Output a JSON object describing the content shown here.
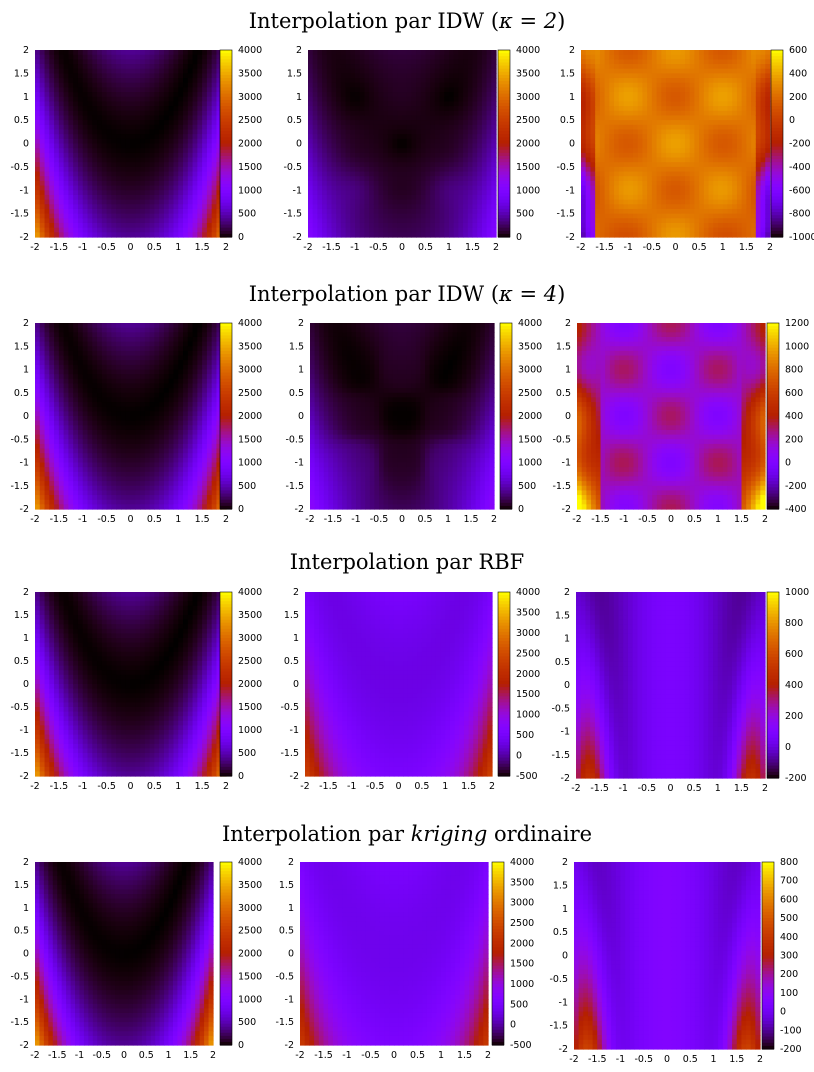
{
  "sections": [
    {
      "title_prefix": "Interpolation par IDW (",
      "title_math": "κ = 2",
      "title_suffix": ")"
    },
    {
      "title_prefix": "Interpolation par IDW (",
      "title_math": "κ = 4",
      "title_suffix": ")"
    },
    {
      "title_prefix": "Interpolation par RBF",
      "title_math": "",
      "title_suffix": ""
    },
    {
      "title_prefix": "Interpolation par ",
      "title_math": "kriging",
      "title_suffix": " ordinaire"
    }
  ],
  "chart_data": [
    {
      "type": "heatmap",
      "name": "idw2-exact",
      "x_ticks": [
        "-2",
        "-1.5",
        "-1",
        "-0.5",
        "0",
        "0.5",
        "1",
        "1.5",
        "2"
      ],
      "y_ticks": [
        "-2",
        "-1.5",
        "-1",
        "-0.5",
        "0",
        "0.5",
        "1",
        "1.5",
        "2"
      ],
      "xlim": [
        -2,
        2
      ],
      "ylim": [
        -2,
        2
      ],
      "cbar_range": [
        0,
        4000
      ],
      "cbar_ticks": [
        "0",
        "500",
        "1000",
        "1500",
        "2000",
        "2500",
        "3000",
        "3500",
        "4000"
      ],
      "field": "exact",
      "palette": "gnuplot"
    },
    {
      "type": "heatmap",
      "name": "idw2-interp",
      "x_ticks": [
        "-2",
        "-1.5",
        "-1",
        "-0.5",
        "0",
        "0.5",
        "1",
        "1.5",
        "2"
      ],
      "y_ticks": [
        "-2",
        "-1.5",
        "-1",
        "-0.5",
        "0",
        "0.5",
        "1",
        "1.5",
        "2"
      ],
      "xlim": [
        -2,
        2
      ],
      "ylim": [
        -2,
        2
      ],
      "cbar_range": [
        0,
        4000
      ],
      "cbar_ticks": [
        "0",
        "500",
        "1000",
        "1500",
        "2000",
        "2500",
        "3000",
        "3500",
        "4000"
      ],
      "field": "idw2",
      "palette": "gnuplot"
    },
    {
      "type": "heatmap",
      "name": "idw2-error",
      "x_ticks": [
        "-2",
        "-1.5",
        "-1",
        "-0.5",
        "0",
        "0.5",
        "1",
        "1.5",
        "2"
      ],
      "y_ticks": [
        "-2",
        "-1.5",
        "-1",
        "-0.5",
        "0",
        "0.5",
        "1",
        "1.5",
        "2"
      ],
      "xlim": [
        -2,
        2
      ],
      "ylim": [
        -2,
        2
      ],
      "cbar_range": [
        -1000,
        600
      ],
      "cbar_ticks": [
        "-1000",
        "-800",
        "-600",
        "-400",
        "-200",
        "0",
        "200",
        "400",
        "600"
      ],
      "field": "idw2err",
      "palette": "gnuplot"
    },
    {
      "type": "heatmap",
      "name": "idw4-exact",
      "x_ticks": [
        "-2",
        "-1.5",
        "-1",
        "-0.5",
        "0",
        "0.5",
        "1",
        "1.5",
        "2"
      ],
      "y_ticks": [
        "-2",
        "-1.5",
        "-1",
        "-0.5",
        "0",
        "0.5",
        "1",
        "1.5",
        "2"
      ],
      "xlim": [
        -2,
        2
      ],
      "ylim": [
        -2,
        2
      ],
      "cbar_range": [
        0,
        4000
      ],
      "cbar_ticks": [
        "0",
        "500",
        "1000",
        "1500",
        "2000",
        "2500",
        "3000",
        "3500",
        "4000"
      ],
      "field": "exact",
      "palette": "gnuplot"
    },
    {
      "type": "heatmap",
      "name": "idw4-interp",
      "x_ticks": [
        "-2",
        "-1.5",
        "-1",
        "-0.5",
        "0",
        "0.5",
        "1",
        "1.5",
        "2"
      ],
      "y_ticks": [
        "-2",
        "-1.5",
        "-1",
        "-0.5",
        "0",
        "0.5",
        "1",
        "1.5",
        "2"
      ],
      "xlim": [
        -2,
        2
      ],
      "ylim": [
        -2,
        2
      ],
      "cbar_range": [
        0,
        4000
      ],
      "cbar_ticks": [
        "0",
        "500",
        "1000",
        "1500",
        "2000",
        "2500",
        "3000",
        "3500",
        "4000"
      ],
      "field": "idw4",
      "palette": "gnuplot"
    },
    {
      "type": "heatmap",
      "name": "idw4-error",
      "x_ticks": [
        "-2",
        "-1.5",
        "-1",
        "-0.5",
        "0",
        "0.5",
        "1",
        "1.5",
        "2"
      ],
      "y_ticks": [
        "-2",
        "-1.5",
        "-1",
        "-0.5",
        "0",
        "0.5",
        "1",
        "1.5",
        "2"
      ],
      "xlim": [
        -2,
        2
      ],
      "ylim": [
        -2,
        2
      ],
      "cbar_range": [
        -400,
        1200
      ],
      "cbar_ticks": [
        "-400",
        "-200",
        "0",
        "200",
        "400",
        "600",
        "800",
        "1000",
        "1200"
      ],
      "field": "idw4err",
      "palette": "gnuplot"
    },
    {
      "type": "heatmap",
      "name": "rbf-exact",
      "x_ticks": [
        "-2",
        "-1.5",
        "-1",
        "-0.5",
        "0",
        "0.5",
        "1",
        "1.5",
        "2"
      ],
      "y_ticks": [
        "-2",
        "-1.5",
        "-1",
        "-0.5",
        "0",
        "0.5",
        "1",
        "1.5",
        "2"
      ],
      "xlim": [
        -2,
        2
      ],
      "ylim": [
        -2,
        2
      ],
      "cbar_range": [
        0,
        4000
      ],
      "cbar_ticks": [
        "0",
        "500",
        "1000",
        "1500",
        "2000",
        "2500",
        "3000",
        "3500",
        "4000"
      ],
      "field": "exact",
      "palette": "gnuplot"
    },
    {
      "type": "heatmap",
      "name": "rbf-interp",
      "x_ticks": [
        "-2",
        "-1.5",
        "-1",
        "-0.5",
        "0",
        "0.5",
        "1",
        "1.5",
        "2"
      ],
      "y_ticks": [
        "-2",
        "-1.5",
        "-1",
        "-0.5",
        "0",
        "0.5",
        "1",
        "1.5",
        "2"
      ],
      "xlim": [
        -2,
        2
      ],
      "ylim": [
        -2,
        2
      ],
      "cbar_range": [
        -500,
        4000
      ],
      "cbar_ticks": [
        "-500",
        "0",
        "500",
        "1000",
        "1500",
        "2000",
        "2500",
        "3000",
        "3500",
        "4000"
      ],
      "field": "rbf",
      "palette": "gnuplot"
    },
    {
      "type": "heatmap",
      "name": "rbf-error",
      "x_ticks": [
        "-2",
        "-1.5",
        "-1",
        "-0.5",
        "0",
        "0.5",
        "1",
        "1.5",
        "2"
      ],
      "y_ticks": [
        "-2",
        "-1.5",
        "-1",
        "-0.5",
        "0",
        "0.5",
        "1",
        "1.5",
        "2"
      ],
      "xlim": [
        -2,
        2
      ],
      "ylim": [
        -2,
        2
      ],
      "cbar_range": [
        -200,
        1000
      ],
      "cbar_ticks": [
        "-200",
        "0",
        "200",
        "400",
        "600",
        "800",
        "1000"
      ],
      "field": "rbferr",
      "palette": "gnuplot"
    },
    {
      "type": "heatmap",
      "name": "kriging-exact",
      "x_ticks": [
        "-2",
        "-1.5",
        "-1",
        "-0.5",
        "0",
        "0.5",
        "1",
        "1.5",
        "2"
      ],
      "y_ticks": [
        "-2",
        "-1.5",
        "-1",
        "-0.5",
        "0",
        "0.5",
        "1",
        "1.5",
        "2"
      ],
      "xlim": [
        -2,
        2
      ],
      "ylim": [
        -2,
        2
      ],
      "cbar_range": [
        0,
        4000
      ],
      "cbar_ticks": [
        "0",
        "500",
        "1000",
        "1500",
        "2000",
        "2500",
        "3000",
        "3500",
        "4000"
      ],
      "field": "exact",
      "palette": "gnuplot"
    },
    {
      "type": "heatmap",
      "name": "kriging-interp",
      "x_ticks": [
        "-2",
        "-1.5",
        "-1",
        "-0.5",
        "0",
        "0.5",
        "1",
        "1.5",
        "2"
      ],
      "y_ticks": [
        "-2",
        "-1.5",
        "-1",
        "-0.5",
        "0",
        "0.5",
        "1",
        "1.5",
        "2"
      ],
      "xlim": [
        -2,
        2
      ],
      "ylim": [
        -2,
        2
      ],
      "cbar_range": [
        -500,
        4000
      ],
      "cbar_ticks": [
        "-500",
        "0",
        "500",
        "1000",
        "1500",
        "2000",
        "2500",
        "3000",
        "3500",
        "4000"
      ],
      "field": "kriging",
      "palette": "gnuplot"
    },
    {
      "type": "heatmap",
      "name": "kriging-error",
      "x_ticks": [
        "-2",
        "-1.5",
        "-1",
        "-0.5",
        "0",
        "0.5",
        "1",
        "1.5",
        "2"
      ],
      "y_ticks": [
        "-2",
        "-1.5",
        "-1",
        "-0.5",
        "0",
        "0.5",
        "1",
        "1.5",
        "2"
      ],
      "xlim": [
        -2,
        2
      ],
      "ylim": [
        -2,
        2
      ],
      "cbar_range": [
        -200,
        800
      ],
      "cbar_ticks": [
        "-200",
        "-100",
        "0",
        "100",
        "200",
        "300",
        "400",
        "500",
        "600",
        "700",
        "800"
      ],
      "field": "krigerr",
      "palette": "gnuplot"
    }
  ]
}
